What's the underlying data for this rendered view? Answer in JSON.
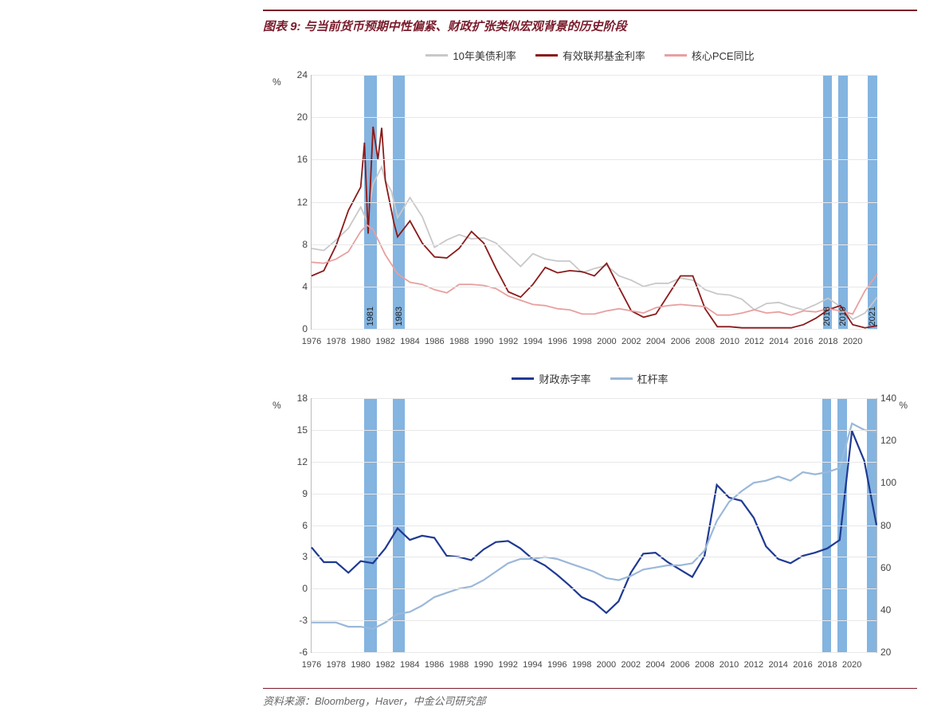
{
  "title": "图表 9: 与当前货币预期中性偏紧、财政扩张类似宏观背景的历史阶段",
  "source": "资料来源：Bloomberg，Haver，中金公司研究部",
  "x_domain": [
    1976,
    2022
  ],
  "x_ticks": [
    1976,
    1978,
    1980,
    1982,
    1984,
    1986,
    1988,
    1990,
    1992,
    1994,
    1996,
    1998,
    2000,
    2002,
    2004,
    2006,
    2008,
    2010,
    2012,
    2014,
    2016,
    2018,
    2020
  ],
  "bands": [
    {
      "start": 1980.3,
      "end": 1981.3,
      "label": "1981"
    },
    {
      "start": 1982.6,
      "end": 1983.6,
      "label": "1983"
    },
    {
      "start": 2017.6,
      "end": 2018.3,
      "label": "2018"
    },
    {
      "start": 2018.8,
      "end": 2019.6,
      "label": "2019"
    },
    {
      "start": 2021.2,
      "end": 2022.0,
      "label": "2021"
    }
  ],
  "chart1": {
    "legend": [
      {
        "label": "10年美债利率",
        "color": "#c8c8c8"
      },
      {
        "label": "有效联邦基金利率",
        "color": "#8b1a1a"
      },
      {
        "label": "核心PCE同比",
        "color": "#e8a0a0"
      }
    ],
    "ylab_left": "%",
    "y_domain": [
      0,
      24
    ],
    "y_ticks": [
      0,
      4,
      8,
      12,
      16,
      20,
      24
    ],
    "series": {
      "treasury10y": {
        "color": "#c8c8c8",
        "width": 1.8,
        "data": [
          [
            1976,
            7.6
          ],
          [
            1977,
            7.4
          ],
          [
            1978,
            8.4
          ],
          [
            1979,
            9.5
          ],
          [
            1980,
            11.5
          ],
          [
            1980.5,
            10.2
          ],
          [
            1981,
            13.7
          ],
          [
            1981.7,
            15.3
          ],
          [
            1982,
            14.0
          ],
          [
            1982.5,
            13.0
          ],
          [
            1983,
            10.5
          ],
          [
            1984,
            12.4
          ],
          [
            1985,
            10.6
          ],
          [
            1986,
            7.7
          ],
          [
            1987,
            8.4
          ],
          [
            1988,
            8.9
          ],
          [
            1989,
            8.5
          ],
          [
            1990,
            8.6
          ],
          [
            1991,
            8.1
          ],
          [
            1992,
            7.0
          ],
          [
            1993,
            5.9
          ],
          [
            1994,
            7.1
          ],
          [
            1995,
            6.6
          ],
          [
            1996,
            6.4
          ],
          [
            1997,
            6.4
          ],
          [
            1998,
            5.3
          ],
          [
            1999,
            5.7
          ],
          [
            2000,
            6.0
          ],
          [
            2001,
            5.0
          ],
          [
            2002,
            4.6
          ],
          [
            2003,
            4.0
          ],
          [
            2004,
            4.3
          ],
          [
            2005,
            4.3
          ],
          [
            2006,
            4.8
          ],
          [
            2007,
            4.6
          ],
          [
            2008,
            3.7
          ],
          [
            2009,
            3.3
          ],
          [
            2010,
            3.2
          ],
          [
            2011,
            2.8
          ],
          [
            2012,
            1.8
          ],
          [
            2013,
            2.4
          ],
          [
            2014,
            2.5
          ],
          [
            2015,
            2.1
          ],
          [
            2016,
            1.8
          ],
          [
            2017,
            2.3
          ],
          [
            2018,
            2.9
          ],
          [
            2019,
            2.1
          ],
          [
            2020,
            0.9
          ],
          [
            2021,
            1.5
          ],
          [
            2022,
            3.0
          ]
        ]
      },
      "fedfunds": {
        "color": "#8b1a1a",
        "width": 1.8,
        "data": [
          [
            1976,
            5.0
          ],
          [
            1977,
            5.5
          ],
          [
            1978,
            7.9
          ],
          [
            1979,
            11.2
          ],
          [
            1980,
            13.4
          ],
          [
            1980.3,
            17.6
          ],
          [
            1980.6,
            9.0
          ],
          [
            1981,
            19.1
          ],
          [
            1981.4,
            16.0
          ],
          [
            1981.7,
            19.0
          ],
          [
            1982,
            14.0
          ],
          [
            1982.7,
            10.0
          ],
          [
            1983,
            8.7
          ],
          [
            1984,
            10.2
          ],
          [
            1985,
            8.1
          ],
          [
            1986,
            6.8
          ],
          [
            1987,
            6.7
          ],
          [
            1988,
            7.6
          ],
          [
            1989,
            9.2
          ],
          [
            1990,
            8.1
          ],
          [
            1991,
            5.7
          ],
          [
            1992,
            3.5
          ],
          [
            1993,
            3.0
          ],
          [
            1994,
            4.2
          ],
          [
            1995,
            5.8
          ],
          [
            1996,
            5.3
          ],
          [
            1997,
            5.5
          ],
          [
            1998,
            5.4
          ],
          [
            1999,
            5.0
          ],
          [
            2000,
            6.2
          ],
          [
            2001,
            3.9
          ],
          [
            2002,
            1.7
          ],
          [
            2003,
            1.1
          ],
          [
            2004,
            1.4
          ],
          [
            2005,
            3.2
          ],
          [
            2006,
            5.0
          ],
          [
            2007,
            5.0
          ],
          [
            2008,
            1.9
          ],
          [
            2009,
            0.2
          ],
          [
            2010,
            0.2
          ],
          [
            2011,
            0.1
          ],
          [
            2012,
            0.1
          ],
          [
            2013,
            0.1
          ],
          [
            2014,
            0.1
          ],
          [
            2015,
            0.1
          ],
          [
            2016,
            0.4
          ],
          [
            2017,
            1.0
          ],
          [
            2018,
            1.8
          ],
          [
            2019,
            2.2
          ],
          [
            2020,
            0.4
          ],
          [
            2021,
            0.1
          ],
          [
            2022,
            0.3
          ]
        ]
      },
      "corepce": {
        "color": "#e8a0a0",
        "width": 1.8,
        "data": [
          [
            1976,
            6.3
          ],
          [
            1977,
            6.2
          ],
          [
            1978,
            6.6
          ],
          [
            1979,
            7.3
          ],
          [
            1980,
            9.2
          ],
          [
            1980.5,
            9.8
          ],
          [
            1981,
            9.4
          ],
          [
            1982,
            7.0
          ],
          [
            1983,
            5.2
          ],
          [
            1984,
            4.4
          ],
          [
            1985,
            4.2
          ],
          [
            1986,
            3.7
          ],
          [
            1987,
            3.4
          ],
          [
            1988,
            4.2
          ],
          [
            1989,
            4.2
          ],
          [
            1990,
            4.1
          ],
          [
            1991,
            3.8
          ],
          [
            1992,
            3.1
          ],
          [
            1993,
            2.7
          ],
          [
            1994,
            2.3
          ],
          [
            1995,
            2.2
          ],
          [
            1996,
            1.9
          ],
          [
            1997,
            1.8
          ],
          [
            1998,
            1.4
          ],
          [
            1999,
            1.4
          ],
          [
            2000,
            1.7
          ],
          [
            2001,
            1.9
          ],
          [
            2002,
            1.7
          ],
          [
            2003,
            1.5
          ],
          [
            2004,
            2.0
          ],
          [
            2005,
            2.2
          ],
          [
            2006,
            2.3
          ],
          [
            2007,
            2.2
          ],
          [
            2008,
            2.1
          ],
          [
            2009,
            1.3
          ],
          [
            2010,
            1.3
          ],
          [
            2011,
            1.5
          ],
          [
            2012,
            1.8
          ],
          [
            2013,
            1.5
          ],
          [
            2014,
            1.6
          ],
          [
            2015,
            1.3
          ],
          [
            2016,
            1.7
          ],
          [
            2017,
            1.6
          ],
          [
            2018,
            1.9
          ],
          [
            2019,
            1.7
          ],
          [
            2020,
            1.4
          ],
          [
            2021,
            3.6
          ],
          [
            2022,
            5.2
          ]
        ]
      }
    }
  },
  "chart2": {
    "legend": [
      {
        "label": "财政赤字率",
        "color": "#1f3a93"
      },
      {
        "label": "杠杆率",
        "color": "#9bb8d9"
      }
    ],
    "ylab_left": "%",
    "ylab_right": "%",
    "y_left": {
      "domain": [
        -6,
        18
      ],
      "ticks": [
        -6,
        -3,
        0,
        3,
        6,
        9,
        12,
        15,
        18
      ]
    },
    "y_right": {
      "domain": [
        20,
        140
      ],
      "ticks": [
        20,
        40,
        60,
        80,
        100,
        120,
        140
      ]
    },
    "series": {
      "deficit": {
        "color": "#1f3a93",
        "axis": "left",
        "width": 2.2,
        "data": [
          [
            1976,
            3.9
          ],
          [
            1977,
            2.5
          ],
          [
            1978,
            2.5
          ],
          [
            1979,
            1.5
          ],
          [
            1980,
            2.6
          ],
          [
            1981,
            2.4
          ],
          [
            1982,
            3.8
          ],
          [
            1983,
            5.7
          ],
          [
            1984,
            4.6
          ],
          [
            1985,
            5.0
          ],
          [
            1986,
            4.8
          ],
          [
            1987,
            3.1
          ],
          [
            1988,
            3.0
          ],
          [
            1989,
            2.7
          ],
          [
            1990,
            3.7
          ],
          [
            1991,
            4.4
          ],
          [
            1992,
            4.5
          ],
          [
            1993,
            3.8
          ],
          [
            1994,
            2.8
          ],
          [
            1995,
            2.2
          ],
          [
            1996,
            1.3
          ],
          [
            1997,
            0.3
          ],
          [
            1998,
            -0.8
          ],
          [
            1999,
            -1.3
          ],
          [
            2000,
            -2.3
          ],
          [
            2001,
            -1.2
          ],
          [
            2002,
            1.5
          ],
          [
            2003,
            3.3
          ],
          [
            2004,
            3.4
          ],
          [
            2005,
            2.5
          ],
          [
            2006,
            1.8
          ],
          [
            2007,
            1.1
          ],
          [
            2008,
            3.1
          ],
          [
            2009,
            9.8
          ],
          [
            2010,
            8.6
          ],
          [
            2011,
            8.3
          ],
          [
            2012,
            6.7
          ],
          [
            2013,
            4.0
          ],
          [
            2014,
            2.8
          ],
          [
            2015,
            2.4
          ],
          [
            2016,
            3.1
          ],
          [
            2017,
            3.4
          ],
          [
            2018,
            3.8
          ],
          [
            2019,
            4.6
          ],
          [
            2020,
            14.9
          ],
          [
            2021,
            12.1
          ],
          [
            2022,
            6.0
          ]
        ]
      },
      "leverage": {
        "color": "#9bb8d9",
        "axis": "right",
        "width": 2.2,
        "data": [
          [
            1976,
            34
          ],
          [
            1977,
            34
          ],
          [
            1978,
            34
          ],
          [
            1979,
            32
          ],
          [
            1980,
            32
          ],
          [
            1981,
            31
          ],
          [
            1982,
            34
          ],
          [
            1983,
            38
          ],
          [
            1984,
            39
          ],
          [
            1985,
            42
          ],
          [
            1986,
            46
          ],
          [
            1987,
            48
          ],
          [
            1988,
            50
          ],
          [
            1989,
            51
          ],
          [
            1990,
            54
          ],
          [
            1991,
            58
          ],
          [
            1992,
            62
          ],
          [
            1993,
            64
          ],
          [
            1994,
            64
          ],
          [
            1995,
            65
          ],
          [
            1996,
            64
          ],
          [
            1997,
            62
          ],
          [
            1998,
            60
          ],
          [
            1999,
            58
          ],
          [
            2000,
            55
          ],
          [
            2001,
            54
          ],
          [
            2002,
            56
          ],
          [
            2003,
            59
          ],
          [
            2004,
            60
          ],
          [
            2005,
            61
          ],
          [
            2006,
            61
          ],
          [
            2007,
            62
          ],
          [
            2008,
            68
          ],
          [
            2009,
            82
          ],
          [
            2010,
            91
          ],
          [
            2011,
            96
          ],
          [
            2012,
            100
          ],
          [
            2013,
            101
          ],
          [
            2014,
            103
          ],
          [
            2015,
            101
          ],
          [
            2016,
            105
          ],
          [
            2017,
            104
          ],
          [
            2018,
            105
          ],
          [
            2019,
            107
          ],
          [
            2020,
            128
          ],
          [
            2021,
            125
          ],
          [
            2022,
            124
          ]
        ]
      }
    }
  }
}
